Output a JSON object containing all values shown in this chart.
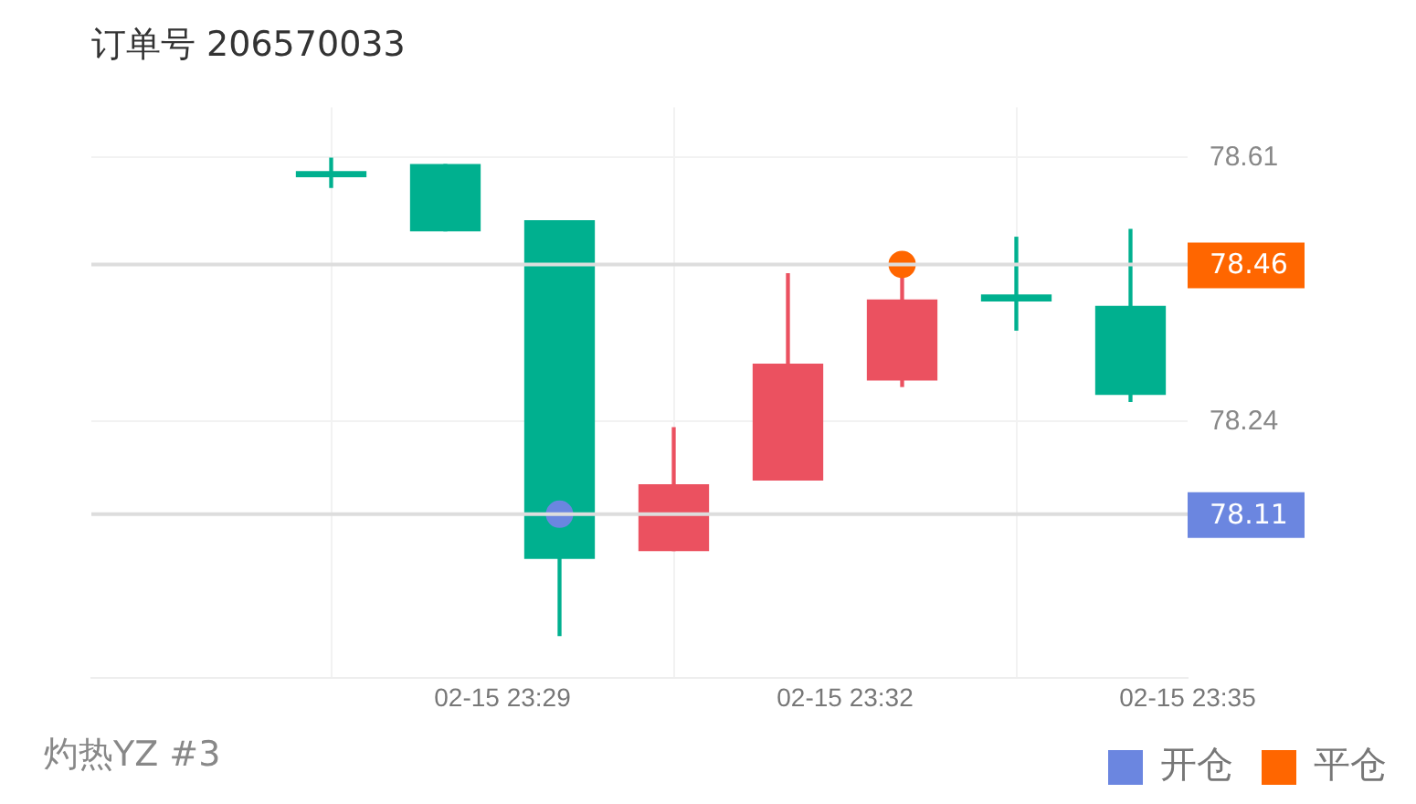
{
  "chart_data": {
    "type": "candlestick",
    "title": "订单号 206570033",
    "x": [
      "--02-15T23:27:30",
      "--02-15T23:28:30",
      "--02-15T23:29:30",
      "--02-15T23:30:30",
      "--02-15T23:31:30",
      "--02-15T23:32:30",
      "--02-15T23:33:30",
      "--02-15T23:34:30"
    ],
    "ohlc": [
      [
        78.59,
        78.609,
        78.568,
        78.583
      ],
      [
        78.6,
        78.6,
        78.507,
        78.507
      ],
      [
        78.521,
        78.521,
        77.94,
        78.048
      ],
      [
        78.059,
        78.231,
        78.059,
        78.151
      ],
      [
        78.158,
        78.447,
        78.158,
        78.32
      ],
      [
        78.298,
        78.445,
        78.289,
        78.41
      ],
      [
        78.417,
        78.498,
        78.368,
        78.409
      ],
      [
        78.401,
        78.509,
        78.268,
        78.278
      ]
    ],
    "colors": [
      "#00b08f",
      "#00b08f",
      "#00b08f",
      "#eb5160",
      "#eb5160",
      "#eb5160",
      "#00b08f",
      "#00b08f"
    ],
    "series": [
      {
        "type": "scatter",
        "name": "开仓",
        "color": "#6b86e0",
        "x": [
          "--02-15T23:29:30"
        ],
        "values": [
          78.11
        ]
      },
      {
        "type": "scatter",
        "name": "平仓",
        "color": "#ff6600",
        "x": [
          "--02-15T23:32:30"
        ],
        "values": [
          78.46
        ]
      }
    ],
    "ref_lines": [
      {
        "axis": "y",
        "value": 78.11,
        "label": "78.11",
        "color": "#dddddd"
      },
      {
        "axis": "y",
        "value": 78.46,
        "label": "78.46",
        "color": "#dddddd"
      }
    ],
    "xlim": [
      "--02-15T23:25:24",
      "--02-15T23:35"
    ],
    "xticks": [
      {
        "value": "--02-15T23:29",
        "label": "02-15 23:29"
      },
      {
        "value": "--02-15T23:32",
        "label": "02-15 23:32"
      },
      {
        "value": "--02-15T23:35",
        "label": "02-15 23:35"
      }
    ],
    "ylim": [
      77.88,
      78.68
    ],
    "yticks": [
      78.61,
      78.24
    ],
    "grid": true,
    "legend": "bottom right",
    "marker": "circle",
    "annotations": [
      "灼热YZ #3"
    ]
  }
}
